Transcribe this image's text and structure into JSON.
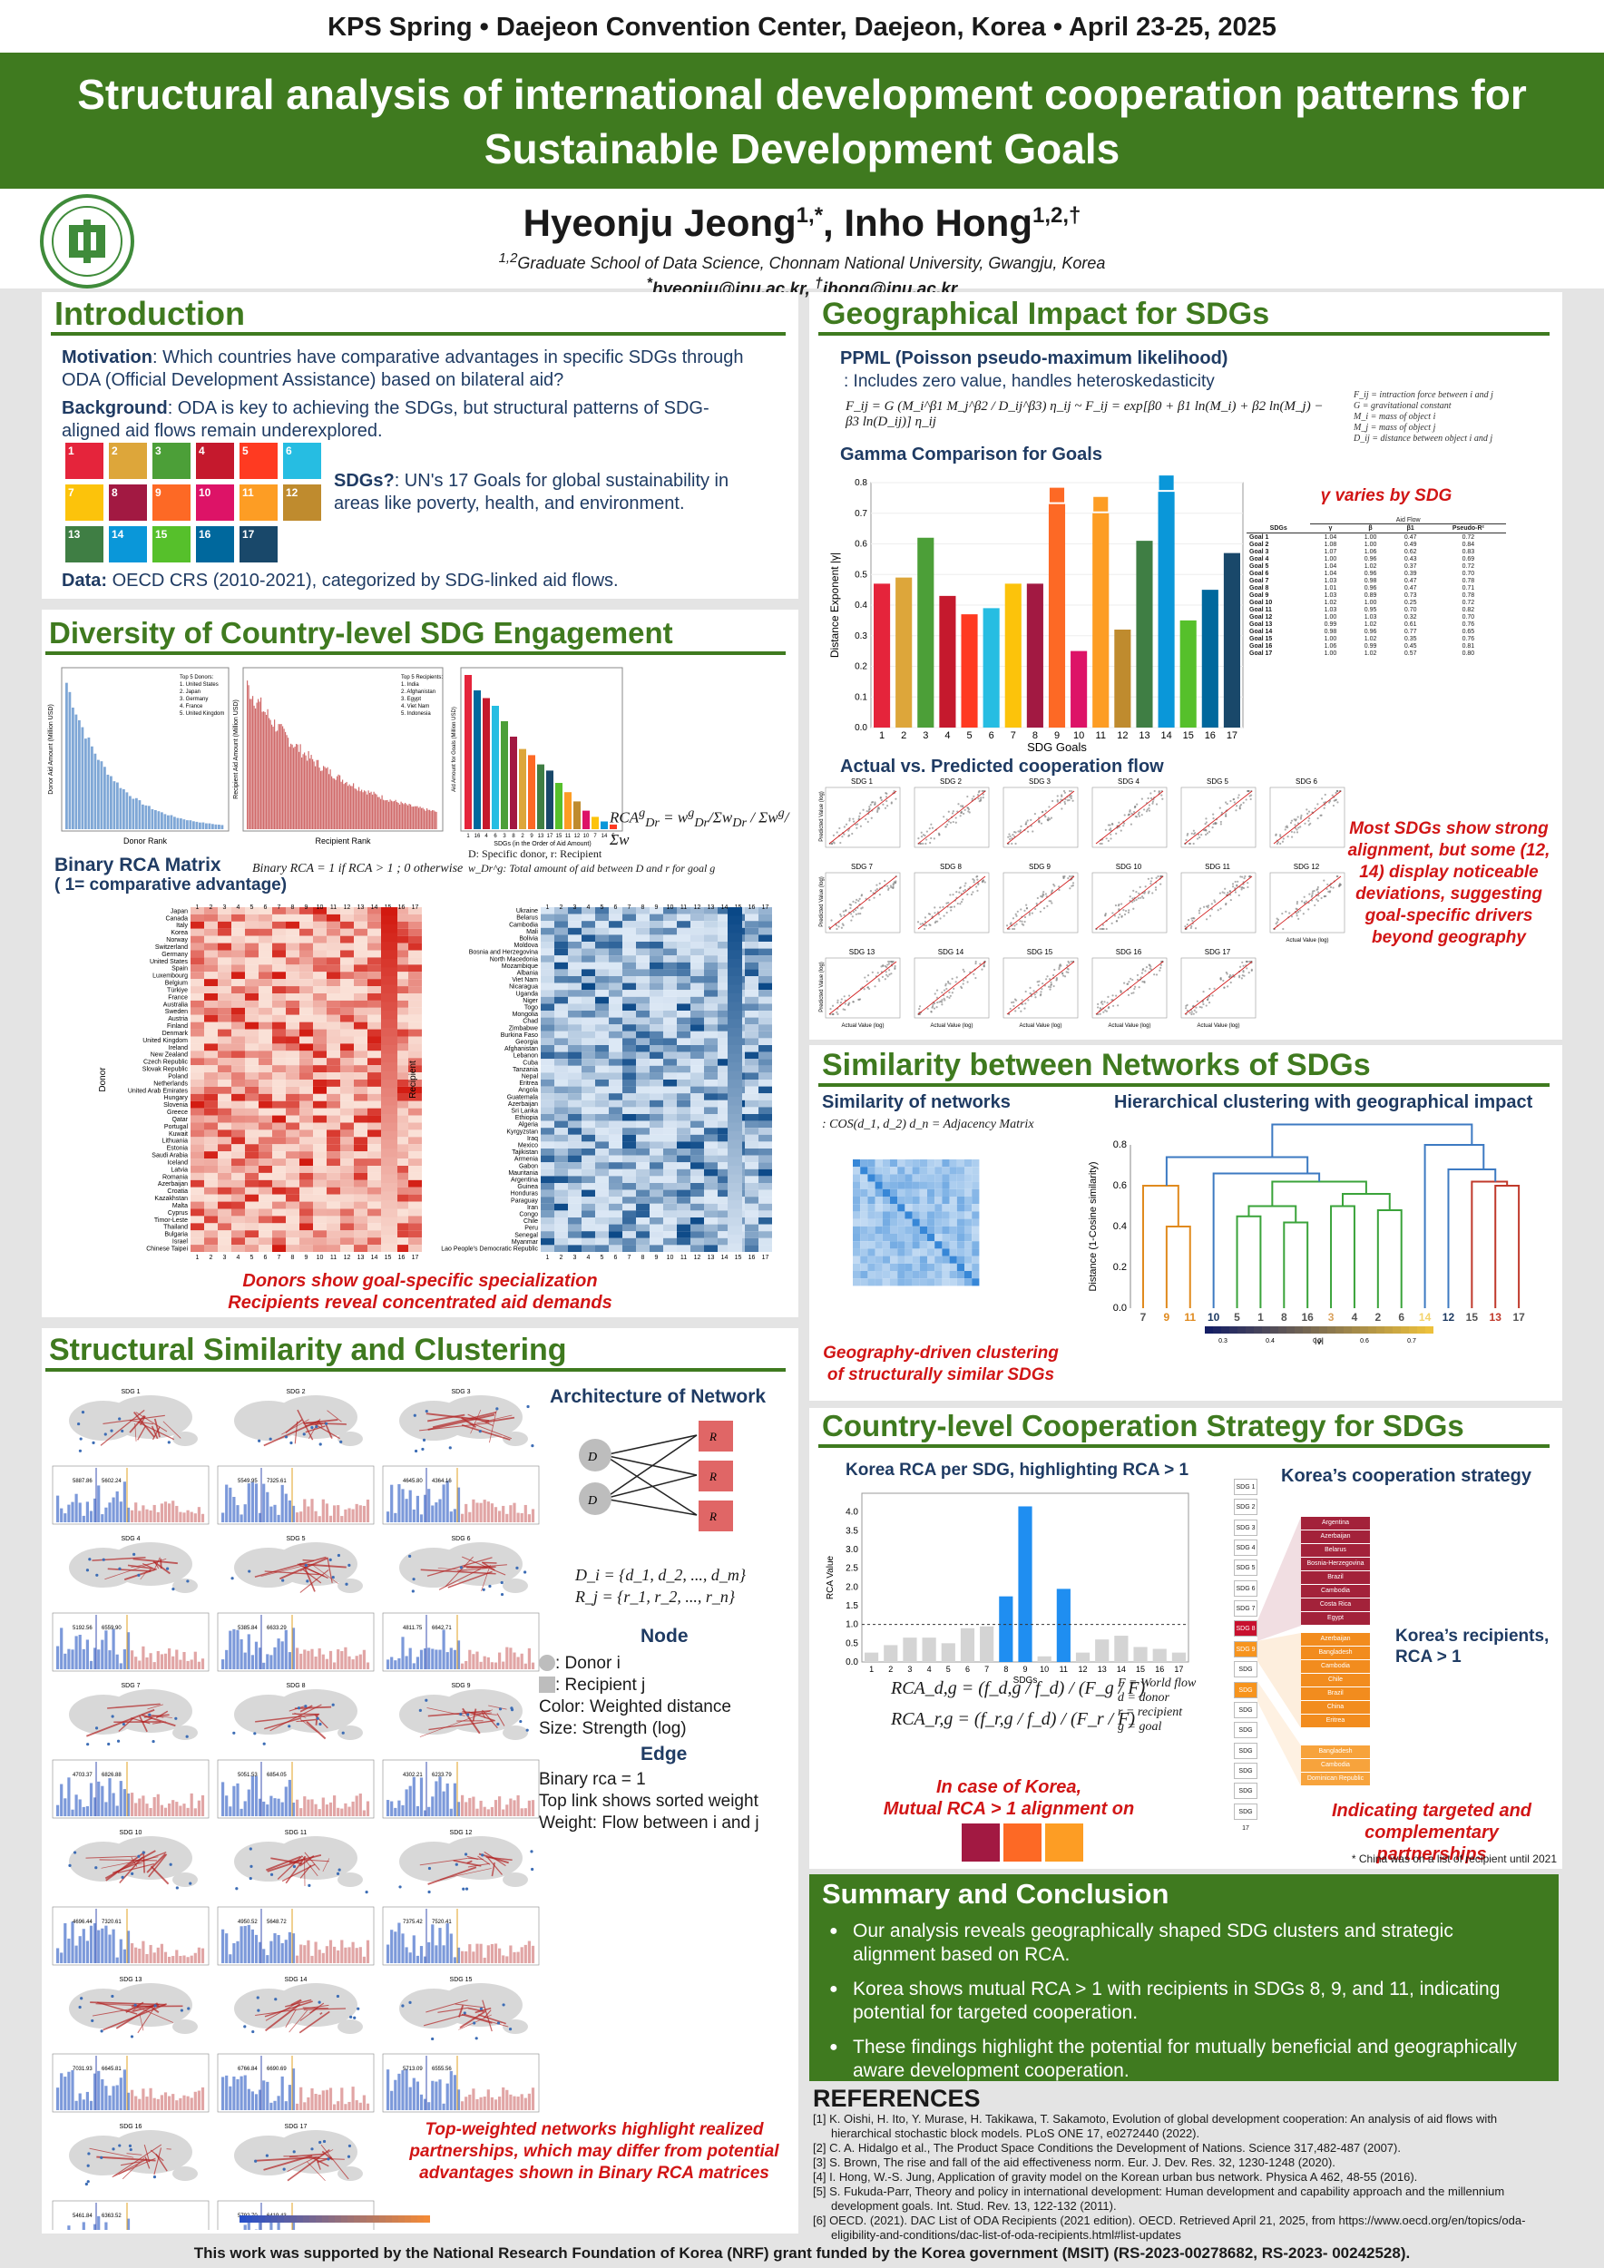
{
  "conference": "KPS Spring • Daejeon Convention Center, Daejeon, Korea • April 23-25, 2025",
  "title_line1": "Structural analysis of international development cooperation patterns for",
  "title_line2": "Sustainable Development Goals",
  "authors": {
    "name1": "Hyeonju Jeong",
    "sup1": "1,*",
    "name2": "Inho Hong",
    "sup2": "1,2,†",
    "aff_sup": "1,2",
    "affiliation": "Graduate School of Data Science, Chonnam National University, Gwangju, Korea",
    "email_sup1": "*",
    "email1": "hyeonju@jnu.ac.kr",
    "email_sup2": "†",
    "email2": "ihong@jnu.ac.kr"
  },
  "intro": {
    "title": "Introduction",
    "motivation_label": "Motivation",
    "motivation": ": Which countries have comparative advantages in specific SDGs through ODA (Official Development Assistance) based on bilateral aid?",
    "background_label": "Background",
    "background": ": ODA is key to achieving the SDGs, but structural patterns of SDG-aligned aid flows remain underexplored.",
    "sdgs_label": "SDGs?",
    "sdgs": ": UN's 17 Goals for global sustainability in areas like poverty, health, and environment.",
    "data_label": "Data:",
    "data": " OECD CRS (2010-2021), categorized by SDG-linked aid flows.",
    "icon_colors": [
      "#e5243b",
      "#dda63a",
      "#4c9f38",
      "#c5192d",
      "#ff3a21",
      "#26bde2",
      "#fcc30b",
      "#a21942",
      "#fd6925",
      "#dd1367",
      "#fd9d24",
      "#bf8b2e",
      "#3f7e44",
      "#0a97d9",
      "#56c02b",
      "#00689d",
      "#19486a"
    ]
  },
  "diversity": {
    "title": "Diversity of Country-level SDG Engagement",
    "donor_legend": [
      "Top 5 Donors:",
      "1. United States",
      "2. Japan",
      "3. Germany",
      "4. France",
      "5. United Kingdom"
    ],
    "recipient_legend": [
      "Top 5 Recipients:",
      "1. India",
      "2. Afghanistan",
      "3. Egypt",
      "4. Viet Nam",
      "5. Indonesia"
    ],
    "xl1": "Donor Rank",
    "xl2": "Recipient Rank",
    "xl3": "SDGs (in the Order of Aid Amount)",
    "yl1": "Donor Aid Amount (Million USD)",
    "yl2": "Recipient Aid Amount (Million USD)",
    "yl3": "Aid Amount for Goals (Million USD)",
    "rca_note1": "D: Specific donor, r: Recipient",
    "rca_note2": "w_Dr^g: Total amount of aid between D and r for goal g",
    "binary_title": "Binary RCA Matrix",
    "binary_sub": "( 1= comparative advantage)",
    "binary_formula": "Binary RCA = 1 if RCA > 1 ; 0 otherwise",
    "donors": [
      "Japan",
      "Canada",
      "Italy",
      "Korea",
      "Norway",
      "Switzerland",
      "Germany",
      "United States",
      "Spain",
      "Luxembourg",
      "Belgium",
      "Türkiye",
      "France",
      "Australia",
      "Sweden",
      "Austria",
      "Finland",
      "Denmark",
      "United Kingdom",
      "Ireland",
      "New Zealand",
      "Czech Republic",
      "Slovak Republic",
      "Poland",
      "Netherlands",
      "United Arab Emirates",
      "Hungary",
      "Slovenia",
      "Greece",
      "Qatar",
      "Portugal",
      "Kuwait",
      "Lithuania",
      "Estonia",
      "Saudi Arabia",
      "Iceland",
      "Latvia",
      "Romania",
      "Azerbaijan",
      "Croatia",
      "Kazakhstan",
      "Malta",
      "Cyprus",
      "Timor-Leste",
      "Thailand",
      "Bulgaria",
      "Israel",
      "Chinese Taipei"
    ],
    "recipients": [
      "Ukraine",
      "Belarus",
      "Cambodia",
      "Mali",
      "Bolivia",
      "Moldova",
      "Bosnia and Herzegovina",
      "North Macedonia",
      "Mozambique",
      "Albania",
      "Viet Nam",
      "Nicaragua",
      "Uganda",
      "Niger",
      "Togo",
      "Mongolia",
      "Chad",
      "Zimbabwe",
      "Burkina Faso",
      "Georgia",
      "Afghanistan",
      "Lebanon",
      "Cuba",
      "Tanzania",
      "Nepal",
      "Eritrea",
      "Angola",
      "Guatemala",
      "Azerbaijan",
      "Sri Lanka",
      "Ethiopia",
      "Algeria",
      "Kyrgyzstan",
      "Iraq",
      "Mexico",
      "Tajikistan",
      "Armenia",
      "Gabon",
      "Mauritania",
      "Argentina",
      "Guinea",
      "Honduras",
      "Paraguay",
      "Iran",
      "Congo",
      "Chile",
      "Peru",
      "Senegal",
      "Myanmar",
      "Lao People's Democratic Republic"
    ],
    "donor_axis": "Donor",
    "recipient_axis": "Recipient",
    "heat_xlabel": "SDG Goals",
    "caption1": "Donors show goal-specific specialization",
    "caption2": "Recipients reveal concentrated aid demands"
  },
  "structural": {
    "title": "Structural Similarity and Clustering",
    "arch_title": "Architecture of Network",
    "di": "D_i",
    "rj": "R_j",
    "set_d": "D_i = {d_1, d_2, ..., d_m}",
    "set_r": "R_j = {r_1, r_2, ..., r_n}",
    "node_title": "Node",
    "node_lines": [
      ": Donor i",
      ": Recipient j",
      "Color: Weighted distance",
      "Size: Strength (log)"
    ],
    "edge_title": "Edge",
    "edge_lines": [
      "Binary rca = 1",
      "Top link shows sorted weight",
      "Weight: Flow between i and j"
    ],
    "panels": [
      "SDG 1",
      "SDG 2",
      "SDG 3",
      "SDG 4",
      "SDG 5",
      "SDG 6",
      "SDG 7",
      "SDG 8",
      "SDG 9",
      "SDG 10",
      "SDG 11",
      "SDG 12",
      "SDG 13",
      "SDG 14",
      "SDG 15",
      "SDG 16",
      "SDG 17"
    ],
    "hist_labels": [
      [
        "5887.86",
        "5602.24"
      ],
      [
        "5549.95",
        "7325.61"
      ],
      [
        "4645.80",
        "4364.16"
      ],
      [
        "5192.56",
        "6559.90"
      ],
      [
        "5385.84",
        "6633.29"
      ],
      [
        "4811.75",
        "6642.71"
      ],
      [
        "4703.37",
        "6826.88"
      ],
      [
        "5051.53",
        "6854.05"
      ],
      [
        "4302.21",
        "6233.79"
      ],
      [
        "4696.44",
        "7320.61"
      ],
      [
        "4950.52",
        "5648.72"
      ],
      [
        "7375.42",
        "7520.41"
      ],
      [
        "7031.93",
        "6645.81"
      ],
      [
        "6766.84",
        "6690.69"
      ],
      [
        "5713.09",
        "6555.56"
      ],
      [
        "5461.84",
        "6363.52"
      ],
      [
        "5792.70",
        "6419.43"
      ]
    ],
    "caption": "Top-weighted networks highlight realized partnerships, which may differ from potential advantages shown in Binary RCA matrices"
  },
  "geo": {
    "title": "Geographical Impact for SDGs",
    "ppml_title": "PPML (Poisson pseudo-maximum likelihood)",
    "ppml_desc": ": Includes zero value, handles heteroskedasticity",
    "formula": "F_ij = G (M_i^β1 M_j^β2 / D_ij^β3) η_ij ~ F_ij = exp[β0 + β1 ln(M_i) + β2 ln(M_j) − β3 ln(D_ij)] η_ij",
    "legend_lines": [
      "F_ij = intraction force between i and j",
      "G = gravitational constant",
      "M_i = mass of object i",
      "M_j = mass of object j",
      "D_ij = distance between object i and j"
    ],
    "gamma_title": "Gamma Comparison for Goals",
    "gamma_note": "γ varies by SDG",
    "table_head": [
      "SDGs",
      "γ",
      "β",
      "β1",
      "Pseudo-R²"
    ],
    "table_group": "Aid Flow",
    "table_rows": [
      [
        "Goal 1",
        "1.04",
        "1.00",
        "0.47",
        "0.72"
      ],
      [
        "Goal 2",
        "1.08",
        "1.00",
        "0.49",
        "0.84"
      ],
      [
        "Goal 3",
        "1.07",
        "1.06",
        "0.62",
        "0.83"
      ],
      [
        "Goal 4",
        "1.00",
        "0.96",
        "0.43",
        "0.69"
      ],
      [
        "Goal 5",
        "1.04",
        "1.02",
        "0.37",
        "0.72"
      ],
      [
        "Goal 6",
        "1.04",
        "0.96",
        "0.39",
        "0.70"
      ],
      [
        "Goal 7",
        "1.03",
        "0.98",
        "0.47",
        "0.78"
      ],
      [
        "Goal 8",
        "1.01",
        "0.96",
        "0.47",
        "0.71"
      ],
      [
        "Goal 9",
        "1.03",
        "0.89",
        "0.73",
        "0.78"
      ],
      [
        "Goal 10",
        "1.02",
        "1.00",
        "0.25",
        "0.72"
      ],
      [
        "Goal 11",
        "1.03",
        "0.95",
        "0.70",
        "0.82"
      ],
      [
        "Goal 12",
        "1.00",
        "1.03",
        "0.32",
        "0.70"
      ],
      [
        "Goal 13",
        "0.99",
        "1.02",
        "0.61",
        "0.76"
      ],
      [
        "Goal 14",
        "0.98",
        "0.96",
        "0.77",
        "0.65"
      ],
      [
        "Goal 15",
        "1.00",
        "1.02",
        "0.35",
        "0.76"
      ],
      [
        "Goal 16",
        "1.06",
        "0.99",
        "0.45",
        "0.81"
      ],
      [
        "Goal 17",
        "1.00",
        "1.02",
        "0.57",
        "0.80"
      ]
    ],
    "actual_title": "Actual vs. Predicted cooperation flow",
    "scatter_titles": [
      "SDG 1",
      "SDG 2",
      "SDG 3",
      "SDG 4",
      "SDG 5",
      "SDG 6",
      "SDG 7",
      "SDG 8",
      "SDG 9",
      "SDG 10",
      "SDG 11",
      "SDG 12",
      "SDG 13",
      "SDG 14",
      "SDG 15",
      "SDG 16",
      "SDG 17"
    ],
    "scatter_x": "Actual Value (log)",
    "scatter_y": "Predicted Value (log)",
    "caption": "Most SDGs show strong alignment, but some (12, 14) display noticeable deviations, suggesting goal-specific drivers beyond geography"
  },
  "similarity": {
    "title": "Similarity between Networks of SDGs",
    "sim_title": "Similarity of networks",
    "sim_formula": ": COS(d_1, d_2)   d_n = Adjacency Matrix",
    "hier_title": "Hierarchical clustering with geographical impact",
    "dendro_ylabel": "Distance (1-Cosine similarity)",
    "leaf_order": [
      "7",
      "9",
      "11",
      "10",
      "5",
      "1",
      "8",
      "16",
      "3",
      "4",
      "2",
      "6",
      "14",
      "12",
      "15",
      "13",
      "17"
    ],
    "leaf_colors": [
      "#555",
      "#e08a1e",
      "#e08a1e",
      "#1f3b63",
      "#555",
      "#555",
      "#555",
      "#555",
      "#d9a05b",
      "#555",
      "#555",
      "#555",
      "#f3d36b",
      "#1f3b63",
      "#555",
      "#c0392b",
      "#555"
    ],
    "colorbar_label": "|γ|",
    "colorbar_ticks": [
      "0.3",
      "0.4",
      "0.5",
      "0.6",
      "0.7"
    ],
    "caption": "Geography-driven clustering of structurally similar SDGs"
  },
  "country": {
    "title": "Country-level Cooperation Strategy for SDGs",
    "rca_title": "Korea RCA per SDG, highlighting RCA > 1",
    "rca_ylabel": "RCA Value",
    "rca_xlabel": "SDGs",
    "formula1": "RCA_d,g = (f_d,g / f_d) / (F_g / F)",
    "formula2": "RCA_r,g = (f_r,g / f_d) / (F_r / F)",
    "formula_legend": [
      "F = World flow",
      "d = donor",
      "r = recipient",
      "g = goal"
    ],
    "korea_caption1": "In case of Korea,",
    "korea_caption2": "Mutual RCA > 1 alignment on",
    "strategy_title": "Korea’s cooperation strategy",
    "sdg_chips": [
      "SDG 1",
      "SDG 2",
      "SDG 3",
      "SDG 4",
      "SDG 5",
      "SDG 6",
      "SDG 7",
      "SDG 8",
      "SDG 9",
      "SDG 10",
      "SDG 11",
      "SDG 12",
      "SDG 13",
      "SDG 14",
      "SDG 15",
      "SDG 16",
      "SDG 17"
    ],
    "sdg8_recipients": [
      "Argentina",
      "Azerbaijan",
      "Belarus",
      "Bosnia-Herzegovina",
      "Brazil",
      "Cambodia",
      "Costa Rica",
      "Egypt"
    ],
    "sdg9_recipients": [
      "Azerbaijan",
      "Bangladesh",
      "Cambodia",
      "Chile",
      "Brazil",
      "China",
      "Eritrea"
    ],
    "sdg11_recipients": [
      "Bangladesh",
      "Cambodia",
      "Dominican Republic"
    ],
    "recipients_label1": "Korea’s recipients,",
    "recipients_label2": "RCA > 1",
    "strategy_caption1": "Indicating targeted and",
    "strategy_caption2": "complementary partnerships",
    "footnote": "* China was on a list of recipient until 2021"
  },
  "summary": {
    "title": "Summary and Conclusion",
    "items": [
      "Our analysis reveals geographically shaped SDG clusters and strategic alignment based on RCA.",
      "Korea shows mutual RCA > 1 with recipients in SDGs 8, 9, and 11, indicating potential for targeted cooperation.",
      "These findings highlight the potential for mutually beneficial and geographically aware development cooperation."
    ]
  },
  "references": {
    "title": "REFERENCES",
    "items": [
      "[1] K. Oishi, H. Ito, Y. Murase, H. Takikawa, T. Sakamoto, Evolution of global development cooperation: An analysis of aid flows with hierarchical stochastic block models. PLoS ONE 17, e0272440 (2022).",
      "[2] C. A. Hidalgo et al., The Product Space Conditions the Development of Nations. Science 317,482-487 (2007).",
      "[3] S. Brown, The rise and fall of the aid effectiveness norm. Eur. J. Dev. Res. 32, 1230-1248 (2020).",
      "[4] I. Hong, W.-S. Jung, Application of gravity model on the Korean urban bus network. Physica A 462, 48-55 (2016).",
      "[5] S. Fukuda-Parr, Theory and policy in international development: Human development and capability approach and the millennium development goals. Int. Stud. Rev. 13, 122-132 (2011).",
      "[6] OECD. (2021). DAC List of ODA Recipients (2021 edition). OECD. Retrieved April 21, 2025, from https://www.oecd.org/en/topics/oda-eligibility-and-conditions/dac-list-of-oda-recipients.html#list-updates"
    ]
  },
  "funding": "This work was supported by the National Research Foundation of Korea (NRF) grant funded by the Korea government (MSIT) (RS-2023-00278682, RS-2023- 00242528).",
  "chart_data": [
    {
      "type": "bar",
      "id": "gamma",
      "title": "Gamma Comparison for Goals",
      "xlabel": "SDG Goals",
      "ylabel": "Distance Exponent  |γ|",
      "categories": [
        "1",
        "2",
        "3",
        "4",
        "5",
        "6",
        "7",
        "8",
        "9",
        "10",
        "11",
        "12",
        "13",
        "14",
        "15",
        "16",
        "17"
      ],
      "values": [
        0.47,
        0.49,
        0.62,
        0.43,
        0.37,
        0.39,
        0.47,
        0.47,
        0.73,
        0.25,
        0.7,
        0.32,
        0.61,
        0.77,
        0.35,
        0.45,
        0.57
      ],
      "colors": [
        "#e5243b",
        "#dda63a",
        "#4c9f38",
        "#c5192d",
        "#ff3a21",
        "#26bde2",
        "#fcc30b",
        "#a21942",
        "#fd6925",
        "#dd1367",
        "#fd9d24",
        "#bf8b2e",
        "#3f7e44",
        "#0a97d9",
        "#56c02b",
        "#00689d",
        "#19486a"
      ],
      "ylim": [
        0,
        0.8
      ]
    },
    {
      "type": "bar",
      "id": "korea_rca",
      "title": "Korea RCA per SDG, highlighting RCA > 1",
      "xlabel": "SDGs",
      "ylabel": "RCA Value",
      "categories": [
        "1",
        "2",
        "3",
        "4",
        "5",
        "6",
        "7",
        "8",
        "9",
        "10",
        "11",
        "12",
        "13",
        "14",
        "15",
        "16",
        "17"
      ],
      "values": [
        0.25,
        0.45,
        0.65,
        0.65,
        0.5,
        0.9,
        0.95,
        1.75,
        4.15,
        0.15,
        1.95,
        0.25,
        0.6,
        0.7,
        0.4,
        0.35,
        0.25
      ],
      "ylim": [
        0,
        4.5
      ],
      "yticks": [
        "0.0",
        "0.5",
        "1.0",
        "1.5",
        "2.0",
        "2.5",
        "3.0",
        "3.5",
        "4.0"
      ],
      "highlight_color": "#1f8ef1",
      "base_color": "#d4d4d4",
      "threshold": 1.0
    },
    {
      "type": "bar",
      "id": "sdg_amount",
      "title": "",
      "xlabel": "SDGs (in the Order of Aid Amount)",
      "ylabel": "Aid Amount for Goals (Million USD)",
      "categories": [
        "1",
        "16",
        "4",
        "6",
        "3",
        "8",
        "2",
        "9",
        "13",
        "17",
        "15",
        "11",
        "12",
        "10",
        "7",
        "14",
        "5"
      ],
      "values": [
        1000,
        900,
        850,
        800,
        700,
        600,
        520,
        480,
        420,
        380,
        300,
        240,
        180,
        120,
        80,
        50,
        30
      ],
      "colors": [
        "#e5243b",
        "#00689d",
        "#c5192d",
        "#26bde2",
        "#4c9f38",
        "#a21942",
        "#dda63a",
        "#fd6925",
        "#3f7e44",
        "#19486a",
        "#56c02b",
        "#fd9d24",
        "#bf8b2e",
        "#dd1367",
        "#fcc30b",
        "#0a97d9",
        "#ff3a21"
      ]
    }
  ]
}
